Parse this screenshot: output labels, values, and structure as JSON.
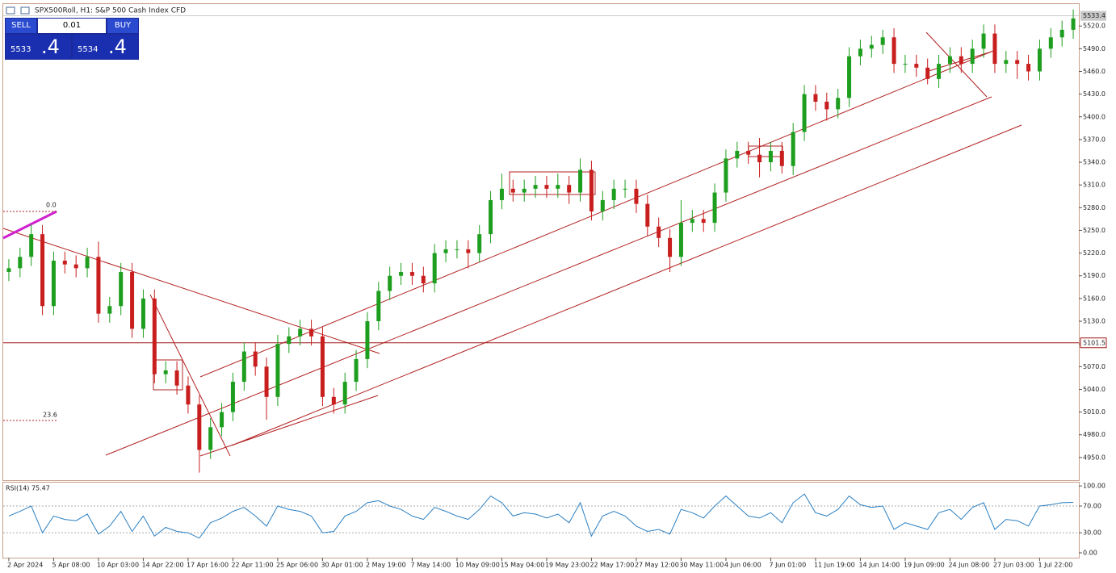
{
  "header": {
    "title": "SPX500Roll, H1:  S&P 500 Cash Index CFD"
  },
  "trade_panel": {
    "sell": "SELL",
    "lot": "0.01",
    "buy": "BUY",
    "bid": "5533",
    "bid_frac": ".4",
    "ask": "5534",
    "ask_frac": ".4"
  },
  "chart_data": [
    {
      "type": "candlestick",
      "categories": [
        "2 Apr 2024",
        null,
        null,
        null,
        "5 Apr 08:00",
        null,
        null,
        null,
        "10 Apr 03:00",
        null,
        null,
        null,
        "14 Apr 22:00",
        null,
        null,
        null,
        "17 Apr 16:00",
        null,
        null,
        null,
        "22 Apr 11:00",
        null,
        null,
        null,
        "25 Apr 06:00",
        null,
        null,
        null,
        "30 Apr 01:00",
        null,
        null,
        null,
        "2 May 19:00",
        null,
        null,
        null,
        "7 May 14:00",
        null,
        null,
        null,
        "10 May 09:00",
        null,
        null,
        null,
        "15 May 04:00",
        null,
        null,
        null,
        "19 May 23:00",
        null,
        null,
        null,
        "22 May 17:00",
        null,
        null,
        null,
        "27 May 12:00",
        null,
        null,
        null,
        "30 May 11:00",
        null,
        null,
        null,
        "4 Jun 06:00",
        null,
        null,
        null,
        "7 Jun 01:00",
        null,
        null,
        null,
        "11 Jun 19:00",
        null,
        null,
        null,
        "14 Jun 14:00",
        null,
        null,
        null,
        "19 Jun 09:00",
        null,
        null,
        null,
        "24 Jun 08:00",
        null,
        null,
        null,
        "27 Jun 03:00",
        null,
        null,
        null,
        "1 Jul 22:00",
        null,
        null,
        null
      ],
      "open": [
        5195,
        5200,
        5215,
        5245,
        5150,
        5210,
        5205,
        5200,
        5215,
        5140,
        5150,
        5195,
        5120,
        5160,
        5060,
        5065,
        5045,
        5020,
        4960,
        4990,
        5010,
        5050,
        5090,
        5070,
        5030,
        5100,
        5110,
        5120,
        5110,
        5030,
        5020,
        5050,
        5080,
        5130,
        5170,
        5190,
        5195,
        5190,
        5180,
        5220,
        5225,
        5225,
        5220,
        5245,
        5290,
        5305,
        5300,
        5305,
        5310,
        5305,
        5310,
        5300,
        5330,
        5275,
        5290,
        5305,
        5305,
        5285,
        5255,
        5240,
        5215,
        5260,
        5265,
        5260,
        5300,
        5345,
        5355,
        5350,
        5340,
        5355,
        5335,
        5380,
        5430,
        5420,
        5410,
        5425,
        5480,
        5490,
        5495,
        5505,
        5470,
        5470,
        5465,
        5450,
        5470,
        5480,
        5470,
        5490,
        5510,
        5470,
        5475,
        5470,
        5460,
        5490,
        5505,
        5515
      ],
      "high": [
        5212,
        5227,
        5258,
        5257,
        5222,
        5222,
        5217,
        5227,
        5235,
        5162,
        5207,
        5207,
        5172,
        5172,
        5077,
        5077,
        5057,
        5032,
        5002,
        5022,
        5062,
        5102,
        5102,
        5082,
        5112,
        5122,
        5132,
        5132,
        5122,
        5042,
        5062,
        5092,
        5142,
        5182,
        5202,
        5207,
        5207,
        5202,
        5232,
        5237,
        5237,
        5237,
        5257,
        5302,
        5325,
        5317,
        5317,
        5322,
        5322,
        5325,
        5322,
        5345,
        5342,
        5302,
        5317,
        5317,
        5317,
        5297,
        5267,
        5252,
        5290,
        5277,
        5277,
        5312,
        5357,
        5367,
        5367,
        5372,
        5367,
        5367,
        5392,
        5442,
        5442,
        5432,
        5437,
        5492,
        5502,
        5507,
        5515,
        5517,
        5482,
        5482,
        5477,
        5482,
        5492,
        5492,
        5502,
        5522,
        5522,
        5487,
        5487,
        5482,
        5502,
        5517,
        5527,
        5542
      ],
      "low": [
        5183,
        5188,
        5203,
        5138,
        5138,
        5193,
        5188,
        5188,
        5128,
        5128,
        5138,
        5108,
        5108,
        5048,
        5048,
        5033,
        5008,
        4930,
        4948,
        4978,
        4998,
        5038,
        5058,
        5000,
        5018,
        5088,
        5098,
        5098,
        5018,
        5008,
        5008,
        5038,
        5068,
        5118,
        5158,
        5178,
        5178,
        5168,
        5168,
        5208,
        5213,
        5200,
        5208,
        5233,
        5278,
        5288,
        5288,
        5293,
        5293,
        5293,
        5285,
        5288,
        5263,
        5263,
        5278,
        5293,
        5273,
        5243,
        5228,
        5195,
        5203,
        5248,
        5248,
        5248,
        5288,
        5333,
        5338,
        5320,
        5328,
        5325,
        5323,
        5368,
        5408,
        5395,
        5398,
        5413,
        5468,
        5478,
        5483,
        5458,
        5458,
        5453,
        5443,
        5438,
        5458,
        5458,
        5458,
        5478,
        5458,
        5458,
        5450,
        5448,
        5448,
        5478,
        5493,
        5503
      ],
      "close": [
        5200,
        5215,
        5245,
        5150,
        5210,
        5205,
        5200,
        5215,
        5140,
        5150,
        5195,
        5120,
        5160,
        5060,
        5065,
        5045,
        5020,
        4960,
        4990,
        5010,
        5050,
        5090,
        5070,
        5030,
        5100,
        5110,
        5120,
        5110,
        5030,
        5020,
        5050,
        5080,
        5130,
        5170,
        5190,
        5195,
        5190,
        5180,
        5220,
        5225,
        5225,
        5220,
        5245,
        5290,
        5305,
        5300,
        5305,
        5310,
        5305,
        5310,
        5300,
        5330,
        5275,
        5290,
        5305,
        5305,
        5285,
        5255,
        5240,
        5215,
        5260,
        5265,
        5260,
        5300,
        5345,
        5355,
        5350,
        5340,
        5355,
        5335,
        5380,
        5430,
        5420,
        5410,
        5425,
        5480,
        5490,
        5495,
        5505,
        5470,
        5470,
        5465,
        5450,
        5470,
        5480,
        5470,
        5490,
        5510,
        5470,
        5475,
        5470,
        5460,
        5490,
        5505,
        5515,
        5530
      ],
      "up_color": "#1e9e1e",
      "down_color": "#c81e1e",
      "ylim": [
        4920,
        5549
      ],
      "yticks": [
        {
          "value": 4950,
          "label": "4950.0"
        },
        {
          "value": 4980,
          "label": "4980.0"
        },
        {
          "value": 5010,
          "label": "5010.0"
        },
        {
          "value": 5040,
          "label": "5040.0"
        },
        {
          "value": 5070,
          "label": "5070.0"
        },
        {
          "value": 5100,
          "label": "5100.0"
        },
        {
          "value": 5130,
          "label": "5130.0"
        },
        {
          "value": 5160,
          "label": "5160.0"
        },
        {
          "value": 5190,
          "label": "5190.0"
        },
        {
          "value": 5220,
          "label": "5220.0"
        },
        {
          "value": 5250,
          "label": "5250.0"
        },
        {
          "value": 5280,
          "label": "5280.0"
        },
        {
          "value": 5310,
          "label": "5310.0"
        },
        {
          "value": 5340,
          "label": "5340.0"
        },
        {
          "value": 5370,
          "label": "5370.0"
        },
        {
          "value": 5400,
          "label": "5400.0"
        },
        {
          "value": 5430,
          "label": "5430.0"
        },
        {
          "value": 5460,
          "label": "5460.0"
        },
        {
          "value": 5490,
          "label": "5490.0"
        },
        {
          "value": 5520,
          "label": "5520.0"
        }
      ],
      "current_price": 5533.4,
      "hline": 5101.5,
      "annotations": [
        "0.0",
        "23.6"
      ]
    },
    {
      "type": "line",
      "title": "RSI(14) 75.47",
      "color": "#2a7fc1",
      "values": [
        55,
        62,
        70,
        30,
        55,
        50,
        48,
        58,
        28,
        40,
        62,
        32,
        55,
        25,
        38,
        32,
        30,
        22,
        45,
        52,
        62,
        68,
        55,
        40,
        70,
        65,
        62,
        55,
        30,
        32,
        55,
        62,
        75,
        78,
        70,
        65,
        55,
        50,
        68,
        62,
        55,
        50,
        65,
        85,
        75,
        55,
        60,
        58,
        52,
        58,
        45,
        75,
        25,
        55,
        62,
        55,
        40,
        32,
        35,
        28,
        65,
        60,
        52,
        70,
        85,
        70,
        55,
        52,
        60,
        45,
        75,
        88,
        60,
        55,
        65,
        85,
        72,
        68,
        70,
        35,
        45,
        40,
        35,
        60,
        65,
        50,
        68,
        75,
        35,
        50,
        48,
        40,
        70,
        72,
        75,
        75.47
      ],
      "ylim": [
        -6,
        105
      ],
      "yticks": [
        {
          "value": 100,
          "label": "100.00"
        },
        {
          "value": 70,
          "label": "70.00"
        },
        {
          "value": 30,
          "label": "30.00"
        },
        {
          "value": 0,
          "label": "0.00"
        }
      ],
      "levels": [
        70,
        30
      ]
    }
  ]
}
